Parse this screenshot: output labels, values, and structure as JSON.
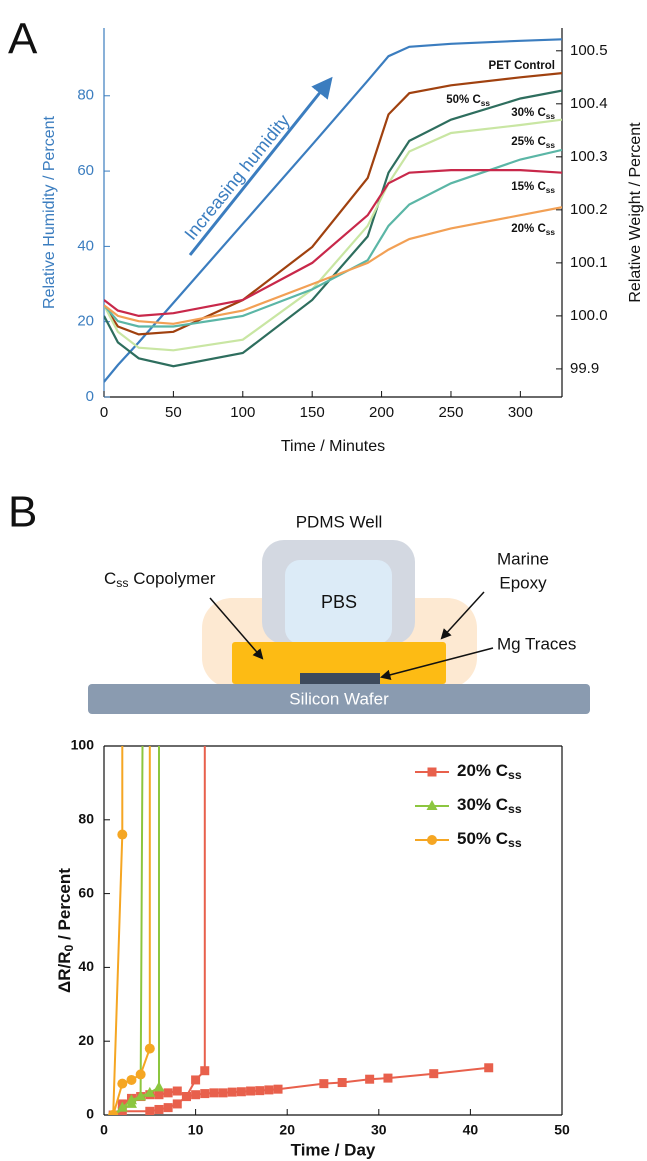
{
  "panel_labels": [
    "A",
    "B"
  ],
  "chart_data": [
    {
      "type": "line",
      "xlabel": "Time / Minutes",
      "ylabel": "Relative Humidity / Percent",
      "y2label": "Relative Weight / Percent",
      "annotation": "Increasing humidity",
      "x": [
        0,
        10,
        25,
        50,
        100,
        150,
        190,
        205,
        220,
        250,
        300,
        330
      ],
      "xlim": [
        0,
        330
      ],
      "xticks": [
        0,
        50,
        100,
        150,
        200,
        250,
        300
      ],
      "ylim": [
        0,
        98
      ],
      "yticks": [
        0,
        20,
        40,
        60,
        80
      ],
      "y2lim": [
        99.847,
        100.543
      ],
      "y2ticks": [
        99.9,
        {
          "value": 100,
          "label": "100.0"
        },
        100.1,
        100.2,
        100.3,
        100.4,
        100.5
      ],
      "series": [
        {
          "color": "#3b7dbf",
          "values": [
            4,
            8.5,
            14.5,
            25,
            46,
            67,
            84,
            90.5,
            93,
            93.8,
            94.6,
            95
          ]
        },
        {
          "name": "PET Control",
          "color": "#a0410f",
          "axis": "y2",
          "values": [
            100.02,
            99.98,
            99.965,
            99.97,
            100.03,
            100.13,
            100.26,
            100.38,
            100.42,
            100.435,
            100.45,
            100.458
          ]
        },
        {
          "name": "50% Css",
          "color": "#2e6e5e",
          "axis": "y2",
          "values": [
            100.0,
            99.95,
            99.92,
            99.905,
            99.93,
            100.03,
            100.15,
            100.27,
            100.33,
            100.37,
            100.41,
            100.425
          ]
        },
        {
          "name": "30% Css",
          "color": "#c9e6a3",
          "axis": "y2",
          "values": [
            100.02,
            99.97,
            99.94,
            99.935,
            99.955,
            100.05,
            100.17,
            100.25,
            100.31,
            100.345,
            100.36,
            100.37
          ]
        },
        {
          "name": "25% Css",
          "color": "#5bb6a6",
          "axis": "y2",
          "values": [
            100.02,
            99.99,
            99.98,
            99.98,
            100.0,
            100.05,
            100.105,
            100.17,
            100.21,
            100.25,
            100.295,
            100.313
          ]
        },
        {
          "name": "15% Css",
          "color": "#c8284a",
          "axis": "y2",
          "values": [
            100.03,
            100.01,
            100.0,
            100.005,
            100.03,
            100.1,
            100.19,
            100.25,
            100.27,
            100.275,
            100.275,
            100.27
          ]
        },
        {
          "name": "20% Css",
          "color": "#f2a055",
          "axis": "y2",
          "values": [
            100.02,
            100.0,
            99.99,
            99.985,
            100.01,
            100.06,
            100.1,
            100.125,
            100.145,
            100.165,
            100.19,
            100.205
          ]
        }
      ]
    },
    {
      "type": "line",
      "xlabel": "Time / Day",
      "ylabel": "ΔR/R0 / Percent",
      "xlim": [
        0,
        50
      ],
      "xticks": [
        0,
        10,
        20,
        30,
        40,
        50
      ],
      "ylim": [
        0,
        100
      ],
      "yticks": [
        0,
        20,
        40,
        60,
        80,
        100
      ],
      "legend": "upper right",
      "series": [
        {
          "name": "20% Css",
          "color": "#e8604c",
          "marker": "square",
          "x": [
            1,
            2,
            5,
            6,
            7,
            8,
            9,
            10,
            11,
            11
          ],
          "values": [
            0,
            1,
            1,
            1.5,
            2,
            3,
            5,
            9.5,
            12,
            100
          ]
        },
        {
          "color": "#e8604c",
          "marker": "square",
          "x": [
            2,
            3,
            4,
            5,
            6,
            7,
            8,
            9,
            10,
            11,
            12,
            13,
            14,
            15,
            16,
            17,
            18,
            19,
            24,
            26,
            29,
            31,
            36,
            42
          ],
          "values": [
            3,
            4.5,
            5,
            5.5,
            5.5,
            6,
            6.5,
            5,
            5.5,
            5.8,
            6,
            6,
            6.2,
            6.3,
            6.5,
            6.6,
            6.8,
            7,
            8.5,
            8.8,
            9.7,
            10,
            11.2,
            12.8
          ]
        },
        {
          "name": "30% Css",
          "color": "#8cc63f",
          "marker": "triangle",
          "x": [
            1,
            2,
            3,
            4,
            4.2
          ],
          "values": [
            0,
            2,
            4,
            5,
            100
          ]
        },
        {
          "color": "#8cc63f",
          "marker": "triangle",
          "x": [
            1,
            3,
            4,
            5,
            6,
            6
          ],
          "values": [
            0,
            3,
            5,
            6,
            7.5,
            100
          ]
        },
        {
          "name": "50% Css",
          "color": "#f5a623",
          "marker": "circle",
          "x": [
            1,
            2,
            2
          ],
          "values": [
            0,
            76,
            100
          ]
        },
        {
          "color": "#f5a623",
          "marker": "circle",
          "x": [
            1,
            2,
            3,
            4,
            5,
            5
          ],
          "values": [
            0,
            8.5,
            9.5,
            11,
            18,
            100
          ]
        }
      ]
    }
  ],
  "diagram": {
    "well": "PDMS Well",
    "fluid": "PBS",
    "copolymer": "Css Copolymer",
    "epoxy": [
      "Marine",
      "Epoxy"
    ],
    "traces": "Mg Traces",
    "substrate": "Silicon Wafer"
  }
}
